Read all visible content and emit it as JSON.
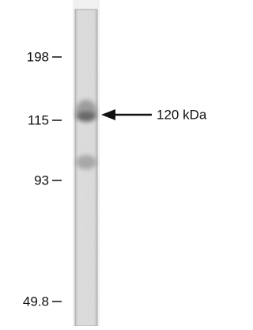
{
  "markers": [
    "198",
    "115",
    "93",
    "49.8"
  ],
  "annotation": "120 kDa"
}
